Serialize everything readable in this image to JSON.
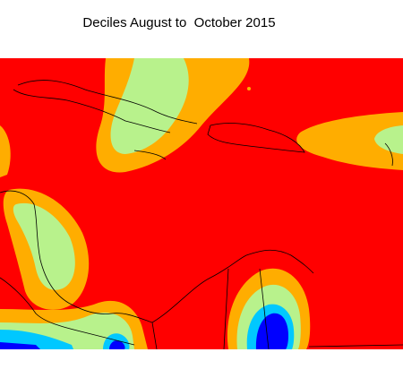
{
  "title": "Deciles August to  October 2015"
}
